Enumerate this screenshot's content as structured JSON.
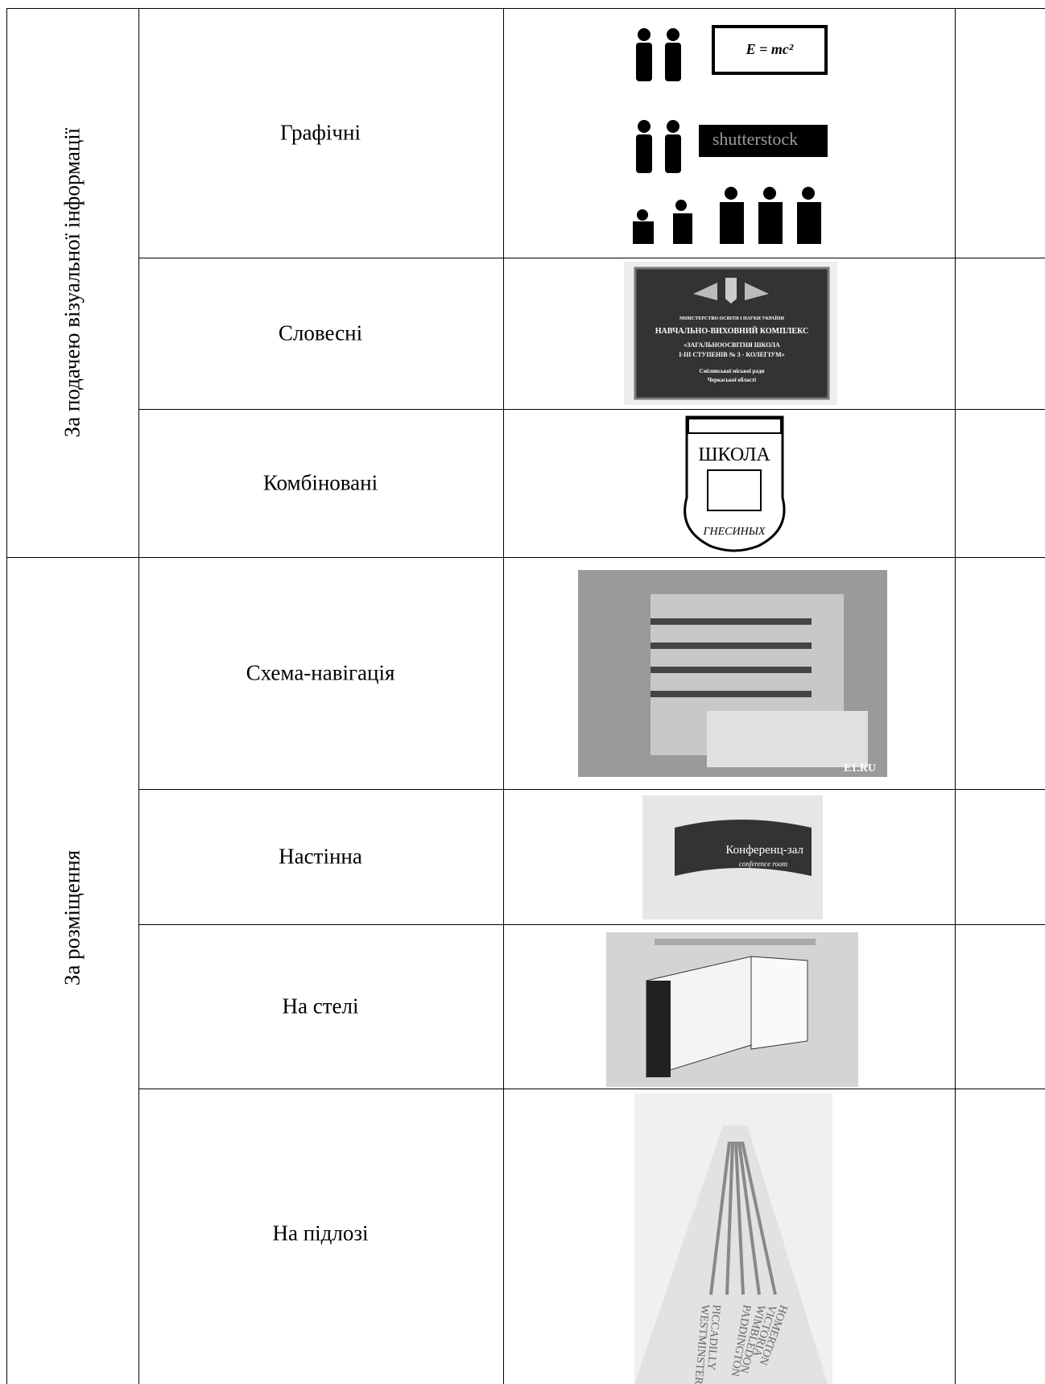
{
  "table": {
    "groups": [
      {
        "label": "За подачею візуальної інформації",
        "rows": [
          {
            "label": "Графічні",
            "image": {
              "texts": [
                "E = mc²",
                "shutterstock"
              ]
            }
          },
          {
            "label": "Словесні",
            "image": {
              "texts": [
                "МІНІСТЕРСТВО ОСВІТИ І НАУКИ УКРАЇНИ",
                "НАВЧАЛЬНО-ВИХОВНИЙ КОМПЛЕКС",
                "«ЗАГАЛЬНООСВІТНЯ ШКОЛА",
                "I-III СТУПЕНІВ № 3 - КОЛЕГІУМ»",
                "Смілянської міської ради",
                "Черкаської області"
              ]
            }
          },
          {
            "label": "Комбіновані",
            "image": {
              "texts": [
                "ШКОЛА",
                "ГНЕСИНЫХ"
              ]
            }
          }
        ]
      },
      {
        "label": "За розміщення",
        "rows": [
          {
            "label": "Схема-навігація",
            "image": {
              "texts": [
                "E1.RU"
              ]
            }
          },
          {
            "label": "Настінна",
            "image": {
              "texts": [
                "Конференц-зал",
                "conference room"
              ]
            }
          },
          {
            "label": "На стелі",
            "image": {
              "texts": []
            }
          },
          {
            "label": "На підлозі",
            "image": {
              "texts": [
                "PICCADILLY",
                "WESTMINSTER",
                "PADDINGTON",
                "WIMBLEDON",
                "VICTORIA",
                "HOMERTON"
              ]
            }
          }
        ]
      }
    ]
  }
}
